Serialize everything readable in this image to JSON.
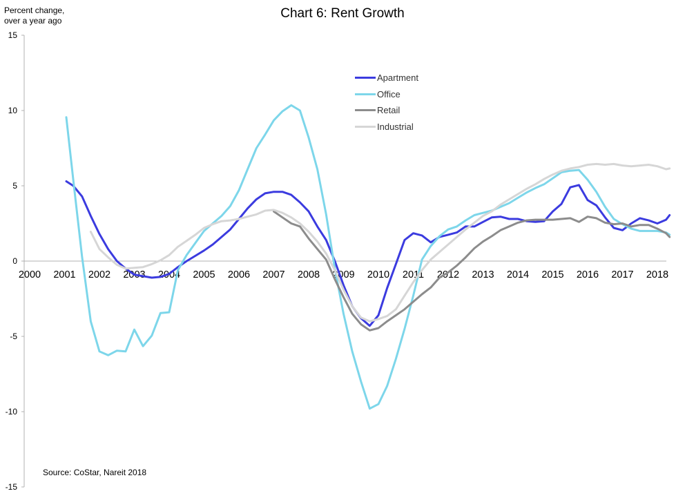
{
  "chart_data": {
    "type": "line",
    "title": "Chart 6: Rent Growth",
    "ylabel": "Percent change,\nover a year ago",
    "source": "Source: CoStar, Nareit 2018",
    "ylim": [
      -15,
      15
    ],
    "xlim": [
      2000,
      2018.35
    ],
    "y_ticks": [
      "15",
      "10",
      "5",
      "0",
      "-5",
      "-10",
      "-15"
    ],
    "y_tick_values": [
      15,
      10,
      5,
      0,
      -5,
      -10,
      -15
    ],
    "x_ticks": [
      "2000",
      "2001",
      "2002",
      "2003",
      "2004",
      "2005",
      "2006",
      "2007",
      "2008",
      "2009",
      "2010",
      "2011",
      "2012",
      "2013",
      "2014",
      "2015",
      "2016",
      "2017",
      "2018"
    ],
    "legend_position": "top-center",
    "grid": false,
    "series": [
      {
        "name": "Apartment",
        "color": "#3b3bdf",
        "points": [
          [
            2001.05,
            5.3
          ],
          [
            2001.25,
            5.0
          ],
          [
            2001.5,
            4.3
          ],
          [
            2001.75,
            3.0
          ],
          [
            2002.0,
            1.8
          ],
          [
            2002.25,
            0.8
          ],
          [
            2002.5,
            0.0
          ],
          [
            2002.75,
            -0.5
          ],
          [
            2003.0,
            -0.9
          ],
          [
            2003.25,
            -1.0
          ],
          [
            2003.5,
            -1.1
          ],
          [
            2003.75,
            -1.05
          ],
          [
            2004.0,
            -0.85
          ],
          [
            2004.25,
            -0.4
          ],
          [
            2004.5,
            0.0
          ],
          [
            2004.75,
            0.35
          ],
          [
            2005.0,
            0.7
          ],
          [
            2005.25,
            1.1
          ],
          [
            2005.5,
            1.6
          ],
          [
            2005.75,
            2.1
          ],
          [
            2006.0,
            2.8
          ],
          [
            2006.25,
            3.5
          ],
          [
            2006.5,
            4.1
          ],
          [
            2006.75,
            4.5
          ],
          [
            2007.0,
            4.6
          ],
          [
            2007.25,
            4.6
          ],
          [
            2007.5,
            4.4
          ],
          [
            2007.75,
            3.9
          ],
          [
            2008.0,
            3.3
          ],
          [
            2008.25,
            2.3
          ],
          [
            2008.5,
            1.4
          ],
          [
            2008.75,
            0.0
          ],
          [
            2009.0,
            -1.6
          ],
          [
            2009.25,
            -3.0
          ],
          [
            2009.5,
            -3.8
          ],
          [
            2009.75,
            -4.3
          ],
          [
            2010.0,
            -3.6
          ],
          [
            2010.25,
            -1.8
          ],
          [
            2010.5,
            -0.2
          ],
          [
            2010.75,
            1.4
          ],
          [
            2011.0,
            1.85
          ],
          [
            2011.25,
            1.7
          ],
          [
            2011.5,
            1.25
          ],
          [
            2011.75,
            1.6
          ],
          [
            2012.0,
            1.75
          ],
          [
            2012.25,
            1.9
          ],
          [
            2012.5,
            2.3
          ],
          [
            2012.75,
            2.3
          ],
          [
            2013.0,
            2.6
          ],
          [
            2013.25,
            2.9
          ],
          [
            2013.5,
            2.95
          ],
          [
            2013.75,
            2.8
          ],
          [
            2014.0,
            2.8
          ],
          [
            2014.25,
            2.65
          ],
          [
            2014.5,
            2.6
          ],
          [
            2014.75,
            2.65
          ],
          [
            2015.0,
            3.3
          ],
          [
            2015.25,
            3.8
          ],
          [
            2015.5,
            4.9
          ],
          [
            2015.75,
            5.05
          ],
          [
            2016.0,
            4.05
          ],
          [
            2016.25,
            3.7
          ],
          [
            2016.5,
            2.9
          ],
          [
            2016.75,
            2.2
          ],
          [
            2017.0,
            2.05
          ],
          [
            2017.25,
            2.5
          ],
          [
            2017.5,
            2.85
          ],
          [
            2017.75,
            2.7
          ],
          [
            2018.0,
            2.5
          ],
          [
            2018.25,
            2.75
          ],
          [
            2018.35,
            3.05
          ]
        ]
      },
      {
        "name": "Office",
        "color": "#7dd6ea",
        "points": [
          [
            2001.05,
            9.55
          ],
          [
            2001.25,
            5.4
          ],
          [
            2001.5,
            0.3
          ],
          [
            2001.75,
            -4.0
          ],
          [
            2002.0,
            -6.0
          ],
          [
            2002.25,
            -6.25
          ],
          [
            2002.5,
            -5.95
          ],
          [
            2002.75,
            -6.0
          ],
          [
            2003.0,
            -4.55
          ],
          [
            2003.25,
            -5.65
          ],
          [
            2003.5,
            -4.95
          ],
          [
            2003.75,
            -3.45
          ],
          [
            2004.0,
            -3.4
          ],
          [
            2004.25,
            -0.6
          ],
          [
            2004.5,
            0.4
          ],
          [
            2004.75,
            1.2
          ],
          [
            2005.0,
            2.0
          ],
          [
            2005.25,
            2.5
          ],
          [
            2005.5,
            3.0
          ],
          [
            2005.75,
            3.65
          ],
          [
            2006.0,
            4.7
          ],
          [
            2006.25,
            6.1
          ],
          [
            2006.5,
            7.5
          ],
          [
            2006.75,
            8.4
          ],
          [
            2007.0,
            9.35
          ],
          [
            2007.25,
            9.95
          ],
          [
            2007.5,
            10.35
          ],
          [
            2007.75,
            10.0
          ],
          [
            2008.0,
            8.2
          ],
          [
            2008.25,
            6.1
          ],
          [
            2008.5,
            3.1
          ],
          [
            2008.75,
            -0.5
          ],
          [
            2009.0,
            -3.5
          ],
          [
            2009.25,
            -6.0
          ],
          [
            2009.5,
            -8.0
          ],
          [
            2009.75,
            -9.8
          ],
          [
            2010.0,
            -9.5
          ],
          [
            2010.25,
            -8.3
          ],
          [
            2010.5,
            -6.5
          ],
          [
            2010.75,
            -4.5
          ],
          [
            2011.0,
            -2.3
          ],
          [
            2011.25,
            0.1
          ],
          [
            2011.5,
            1.0
          ],
          [
            2011.75,
            1.65
          ],
          [
            2012.0,
            2.1
          ],
          [
            2012.25,
            2.3
          ],
          [
            2012.5,
            2.7
          ],
          [
            2012.75,
            3.05
          ],
          [
            2013.0,
            3.2
          ],
          [
            2013.25,
            3.35
          ],
          [
            2013.5,
            3.6
          ],
          [
            2013.75,
            3.85
          ],
          [
            2014.0,
            4.2
          ],
          [
            2014.25,
            4.55
          ],
          [
            2014.5,
            4.85
          ],
          [
            2014.75,
            5.1
          ],
          [
            2015.0,
            5.5
          ],
          [
            2015.25,
            5.9
          ],
          [
            2015.5,
            6.0
          ],
          [
            2015.75,
            6.05
          ],
          [
            2016.0,
            5.4
          ],
          [
            2016.25,
            4.6
          ],
          [
            2016.5,
            3.6
          ],
          [
            2016.75,
            2.8
          ],
          [
            2017.0,
            2.45
          ],
          [
            2017.25,
            2.15
          ],
          [
            2017.5,
            2.0
          ],
          [
            2017.75,
            2.0
          ],
          [
            2018.0,
            2.0
          ],
          [
            2018.25,
            1.9
          ],
          [
            2018.35,
            1.75
          ]
        ]
      },
      {
        "name": "Retail",
        "color": "#8c8c8c",
        "points": [
          [
            2007.0,
            3.3
          ],
          [
            2007.25,
            2.9
          ],
          [
            2007.5,
            2.5
          ],
          [
            2007.75,
            2.3
          ],
          [
            2008.0,
            1.5
          ],
          [
            2008.25,
            0.8
          ],
          [
            2008.5,
            0.1
          ],
          [
            2008.75,
            -1.2
          ],
          [
            2009.0,
            -2.4
          ],
          [
            2009.25,
            -3.5
          ],
          [
            2009.5,
            -4.2
          ],
          [
            2009.75,
            -4.6
          ],
          [
            2010.0,
            -4.45
          ],
          [
            2010.25,
            -4.0
          ],
          [
            2010.5,
            -3.6
          ],
          [
            2010.75,
            -3.2
          ],
          [
            2011.0,
            -2.7
          ],
          [
            2011.25,
            -2.2
          ],
          [
            2011.5,
            -1.75
          ],
          [
            2011.75,
            -1.1
          ],
          [
            2012.0,
            -0.75
          ],
          [
            2012.25,
            -0.3
          ],
          [
            2012.5,
            0.25
          ],
          [
            2012.75,
            0.85
          ],
          [
            2013.0,
            1.3
          ],
          [
            2013.25,
            1.65
          ],
          [
            2013.5,
            2.05
          ],
          [
            2013.75,
            2.3
          ],
          [
            2014.0,
            2.55
          ],
          [
            2014.25,
            2.7
          ],
          [
            2014.5,
            2.75
          ],
          [
            2014.75,
            2.75
          ],
          [
            2015.0,
            2.75
          ],
          [
            2015.25,
            2.8
          ],
          [
            2015.5,
            2.85
          ],
          [
            2015.75,
            2.6
          ],
          [
            2016.0,
            2.95
          ],
          [
            2016.25,
            2.85
          ],
          [
            2016.5,
            2.55
          ],
          [
            2016.75,
            2.45
          ],
          [
            2017.0,
            2.5
          ],
          [
            2017.25,
            2.3
          ],
          [
            2017.5,
            2.4
          ],
          [
            2017.75,
            2.4
          ],
          [
            2018.0,
            2.15
          ],
          [
            2018.25,
            1.85
          ],
          [
            2018.35,
            1.6
          ]
        ]
      },
      {
        "name": "Industrial",
        "color": "#d6d6d6",
        "points": [
          [
            2001.75,
            1.95
          ],
          [
            2002.0,
            0.8
          ],
          [
            2002.25,
            0.25
          ],
          [
            2002.5,
            -0.25
          ],
          [
            2002.75,
            -0.5
          ],
          [
            2003.0,
            -0.45
          ],
          [
            2003.25,
            -0.4
          ],
          [
            2003.5,
            -0.2
          ],
          [
            2003.75,
            0.05
          ],
          [
            2004.0,
            0.4
          ],
          [
            2004.25,
            0.95
          ],
          [
            2004.5,
            1.35
          ],
          [
            2004.75,
            1.75
          ],
          [
            2005.0,
            2.2
          ],
          [
            2005.25,
            2.45
          ],
          [
            2005.5,
            2.65
          ],
          [
            2005.75,
            2.7
          ],
          [
            2006.0,
            2.8
          ],
          [
            2006.25,
            2.95
          ],
          [
            2006.5,
            3.1
          ],
          [
            2006.75,
            3.35
          ],
          [
            2007.0,
            3.4
          ],
          [
            2007.25,
            3.2
          ],
          [
            2007.5,
            2.9
          ],
          [
            2007.75,
            2.5
          ],
          [
            2008.0,
            1.95
          ],
          [
            2008.25,
            1.3
          ],
          [
            2008.5,
            0.5
          ],
          [
            2008.75,
            -0.6
          ],
          [
            2009.0,
            -1.9
          ],
          [
            2009.25,
            -3.0
          ],
          [
            2009.5,
            -3.75
          ],
          [
            2009.75,
            -4.0
          ],
          [
            2010.0,
            -3.85
          ],
          [
            2010.25,
            -3.65
          ],
          [
            2010.5,
            -3.2
          ],
          [
            2010.75,
            -2.3
          ],
          [
            2011.0,
            -1.4
          ],
          [
            2011.25,
            -0.6
          ],
          [
            2011.5,
            0.1
          ],
          [
            2011.75,
            0.6
          ],
          [
            2012.0,
            1.1
          ],
          [
            2012.25,
            1.6
          ],
          [
            2012.5,
            2.1
          ],
          [
            2012.75,
            2.55
          ],
          [
            2013.0,
            3.0
          ],
          [
            2013.25,
            3.3
          ],
          [
            2013.5,
            3.75
          ],
          [
            2013.75,
            4.1
          ],
          [
            2014.0,
            4.45
          ],
          [
            2014.25,
            4.8
          ],
          [
            2014.5,
            5.1
          ],
          [
            2014.75,
            5.45
          ],
          [
            2015.0,
            5.75
          ],
          [
            2015.25,
            6.0
          ],
          [
            2015.5,
            6.15
          ],
          [
            2015.75,
            6.25
          ],
          [
            2016.0,
            6.4
          ],
          [
            2016.25,
            6.45
          ],
          [
            2016.5,
            6.4
          ],
          [
            2016.75,
            6.45
          ],
          [
            2017.0,
            6.35
          ],
          [
            2017.25,
            6.3
          ],
          [
            2017.5,
            6.35
          ],
          [
            2017.75,
            6.4
          ],
          [
            2018.0,
            6.3
          ],
          [
            2018.25,
            6.1
          ],
          [
            2018.35,
            6.15
          ]
        ]
      }
    ]
  }
}
